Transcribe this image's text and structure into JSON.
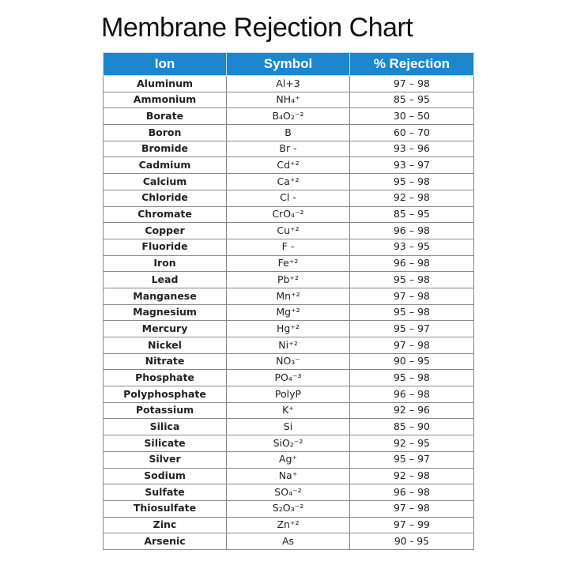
{
  "title": "Membrane Rejection Chart",
  "table": {
    "header": [
      "Ion",
      "Symbol",
      "% Rejection"
    ],
    "rows": [
      [
        "Aluminum",
        "Al+3",
        "97 – 98"
      ],
      [
        "Ammonium",
        "NH₄⁺",
        "85 – 95"
      ],
      [
        "Borate",
        "B₄O₂⁻²",
        "30 – 50"
      ],
      [
        "Boron",
        "B",
        "60 – 70"
      ],
      [
        "Bromide",
        "Br -",
        "93 – 96"
      ],
      [
        "Cadmium",
        "Cd⁺²",
        "93 – 97"
      ],
      [
        "Calcium",
        "Ca⁺²",
        "95 – 98"
      ],
      [
        "Chloride",
        "Cl -",
        "92 – 98"
      ],
      [
        "Chromate",
        "CrO₄⁻²",
        "85 – 95"
      ],
      [
        "Copper",
        "Cu⁺²",
        "96 – 98"
      ],
      [
        "Fluoride",
        "F -",
        "93 – 95"
      ],
      [
        "Iron",
        "Fe⁺²",
        "96 – 98"
      ],
      [
        "Lead",
        "Pb⁺²",
        "95 – 98"
      ],
      [
        "Manganese",
        "Mn⁺²",
        "97 – 98"
      ],
      [
        "Magnesium",
        "Mg⁺²",
        "95 – 98"
      ],
      [
        "Mercury",
        "Hg⁺²",
        "95 – 97"
      ],
      [
        "Nickel",
        "Ni⁺²",
        "97 – 98"
      ],
      [
        "Nitrate",
        "NO₃⁻",
        "90 – 95"
      ],
      [
        "Phosphate",
        "PO₄⁻³",
        "95 – 98"
      ],
      [
        "Polyphosphate",
        "PolyP",
        "96 – 98"
      ],
      [
        "Potassium",
        "K⁺",
        "92 – 96"
      ],
      [
        "Silica",
        "Si",
        "85 – 90"
      ],
      [
        "Silicate",
        "SiO₂⁻²",
        "92 – 95"
      ],
      [
        "Silver",
        "Ag⁺",
        "95 – 97"
      ],
      [
        "Sodium",
        "Na⁺",
        "92 – 98"
      ],
      [
        "Sulfate",
        "SO₄⁻²",
        "96 – 98"
      ],
      [
        "Thiosulfate",
        "S₂O₃⁻²",
        "97 – 98"
      ],
      [
        "Zinc",
        "Zn⁺²",
        "97 – 99"
      ],
      [
        "Arsenic",
        "As",
        "90 - 95"
      ]
    ]
  }
}
